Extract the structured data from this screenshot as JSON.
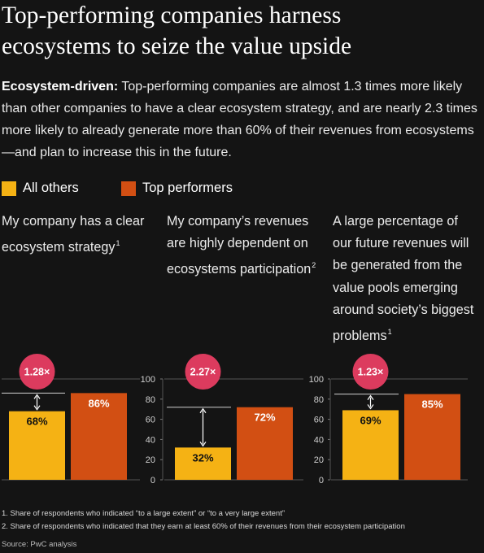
{
  "title_line1": "Top-performing companies harness",
  "title_line2": "ecosystems to seize the value upside",
  "lede": {
    "bold": "Ecosystem-driven:",
    "text": " Top-performing companies are almost 1.3 times more likely than other companies to have a clear ecosystem strategy, and are nearly 2.3 times more likely to already generate more than 60% of their revenues from ecosystems—and plan to increase this in the future."
  },
  "colors": {
    "others": "#f5b214",
    "top": "#d24f13",
    "ratio_bubble": "#dc3b5e",
    "background": "#141414"
  },
  "legend": [
    {
      "label": "All others",
      "color": "#f5b214"
    },
    {
      "label": "Top performers",
      "color": "#d24f13"
    }
  ],
  "chart_data": [
    {
      "type": "bar",
      "title": "My company has a clear ecosystem strategy",
      "footnote_ref": "1",
      "categories": [
        "All others",
        "Top performers"
      ],
      "values": [
        68,
        86
      ],
      "value_labels": [
        "68%",
        "86%"
      ],
      "ratio_label": "1.28×",
      "ylim": [
        0,
        100
      ],
      "axis_visible": false
    },
    {
      "type": "bar",
      "title": "My company’s revenues are highly dependent on ecosystems participation",
      "footnote_ref": "2",
      "categories": [
        "All others",
        "Top performers"
      ],
      "values": [
        32,
        72
      ],
      "value_labels": [
        "32%",
        "72%"
      ],
      "ratio_label": "2.27×",
      "ylim": [
        0,
        100
      ],
      "axis_visible": true,
      "yticks": [
        "100",
        "80",
        "60",
        "40",
        "20",
        "0"
      ]
    },
    {
      "type": "bar",
      "title": "A large percentage of our future revenues will be generated from the value pools emerging around society’s biggest problems",
      "footnote_ref": "1",
      "categories": [
        "All others",
        "Top performers"
      ],
      "values": [
        69,
        85
      ],
      "value_labels": [
        "69%",
        "85%"
      ],
      "ratio_label": "1.23×",
      "ylim": [
        0,
        100
      ],
      "axis_visible": true,
      "yticks": [
        "100",
        "80",
        "60",
        "40",
        "20",
        "0"
      ]
    }
  ],
  "footnotes": [
    "1. Share of respondents who indicated “to a large extent” or “to a very large extent”",
    "2. Share of respondents who indicated that they earn at least 60% of their revenues from their ecosystem participation"
  ],
  "source": "Source: PwC analysis"
}
